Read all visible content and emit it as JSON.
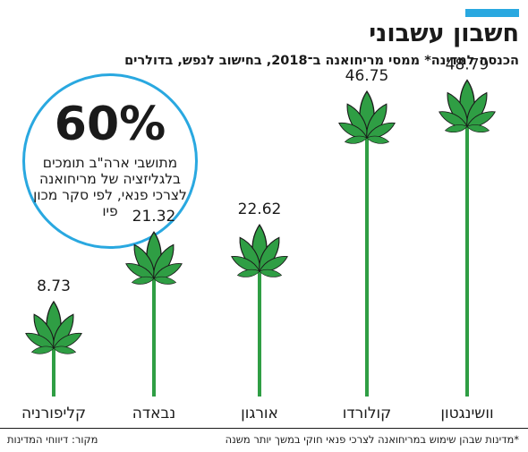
{
  "title": "חשבון עשבוני",
  "subtitle": "הכנסה למדינה* ממסי מריחואנה ב־2018, בחישוב לנפש, בדולרים",
  "callout": {
    "percent": "60%",
    "text": "מתושבי ארה\"ב תומכים בלגליזציה של מריחואנה לצרכי פנאי, לפי סקר מכון פיו"
  },
  "footnote": "*מדינות שבהן שימוש במריחואנה לצרכי פנאי חוקי במשך יותר משנה",
  "source": "מקור: דיווחי המדינות",
  "colors": {
    "accent": "#29a8e0",
    "leaf": "#2f9e44",
    "leaf_stroke": "#1a1a1a"
  },
  "chart_data": {
    "type": "bar",
    "title": "",
    "xlabel": "",
    "ylabel": "",
    "categories": [
      "קליפורניה",
      "נבאדה",
      "אורגון",
      "קולורדו",
      "וושינגטון"
    ],
    "values": [
      8.73,
      21.32,
      22.62,
      46.75,
      48.79
    ],
    "value_labels": [
      "8.73",
      "21.32",
      "22.62",
      "46.75",
      "48.79"
    ],
    "ylim": [
      0,
      50
    ],
    "grid": false,
    "legend": "none"
  }
}
